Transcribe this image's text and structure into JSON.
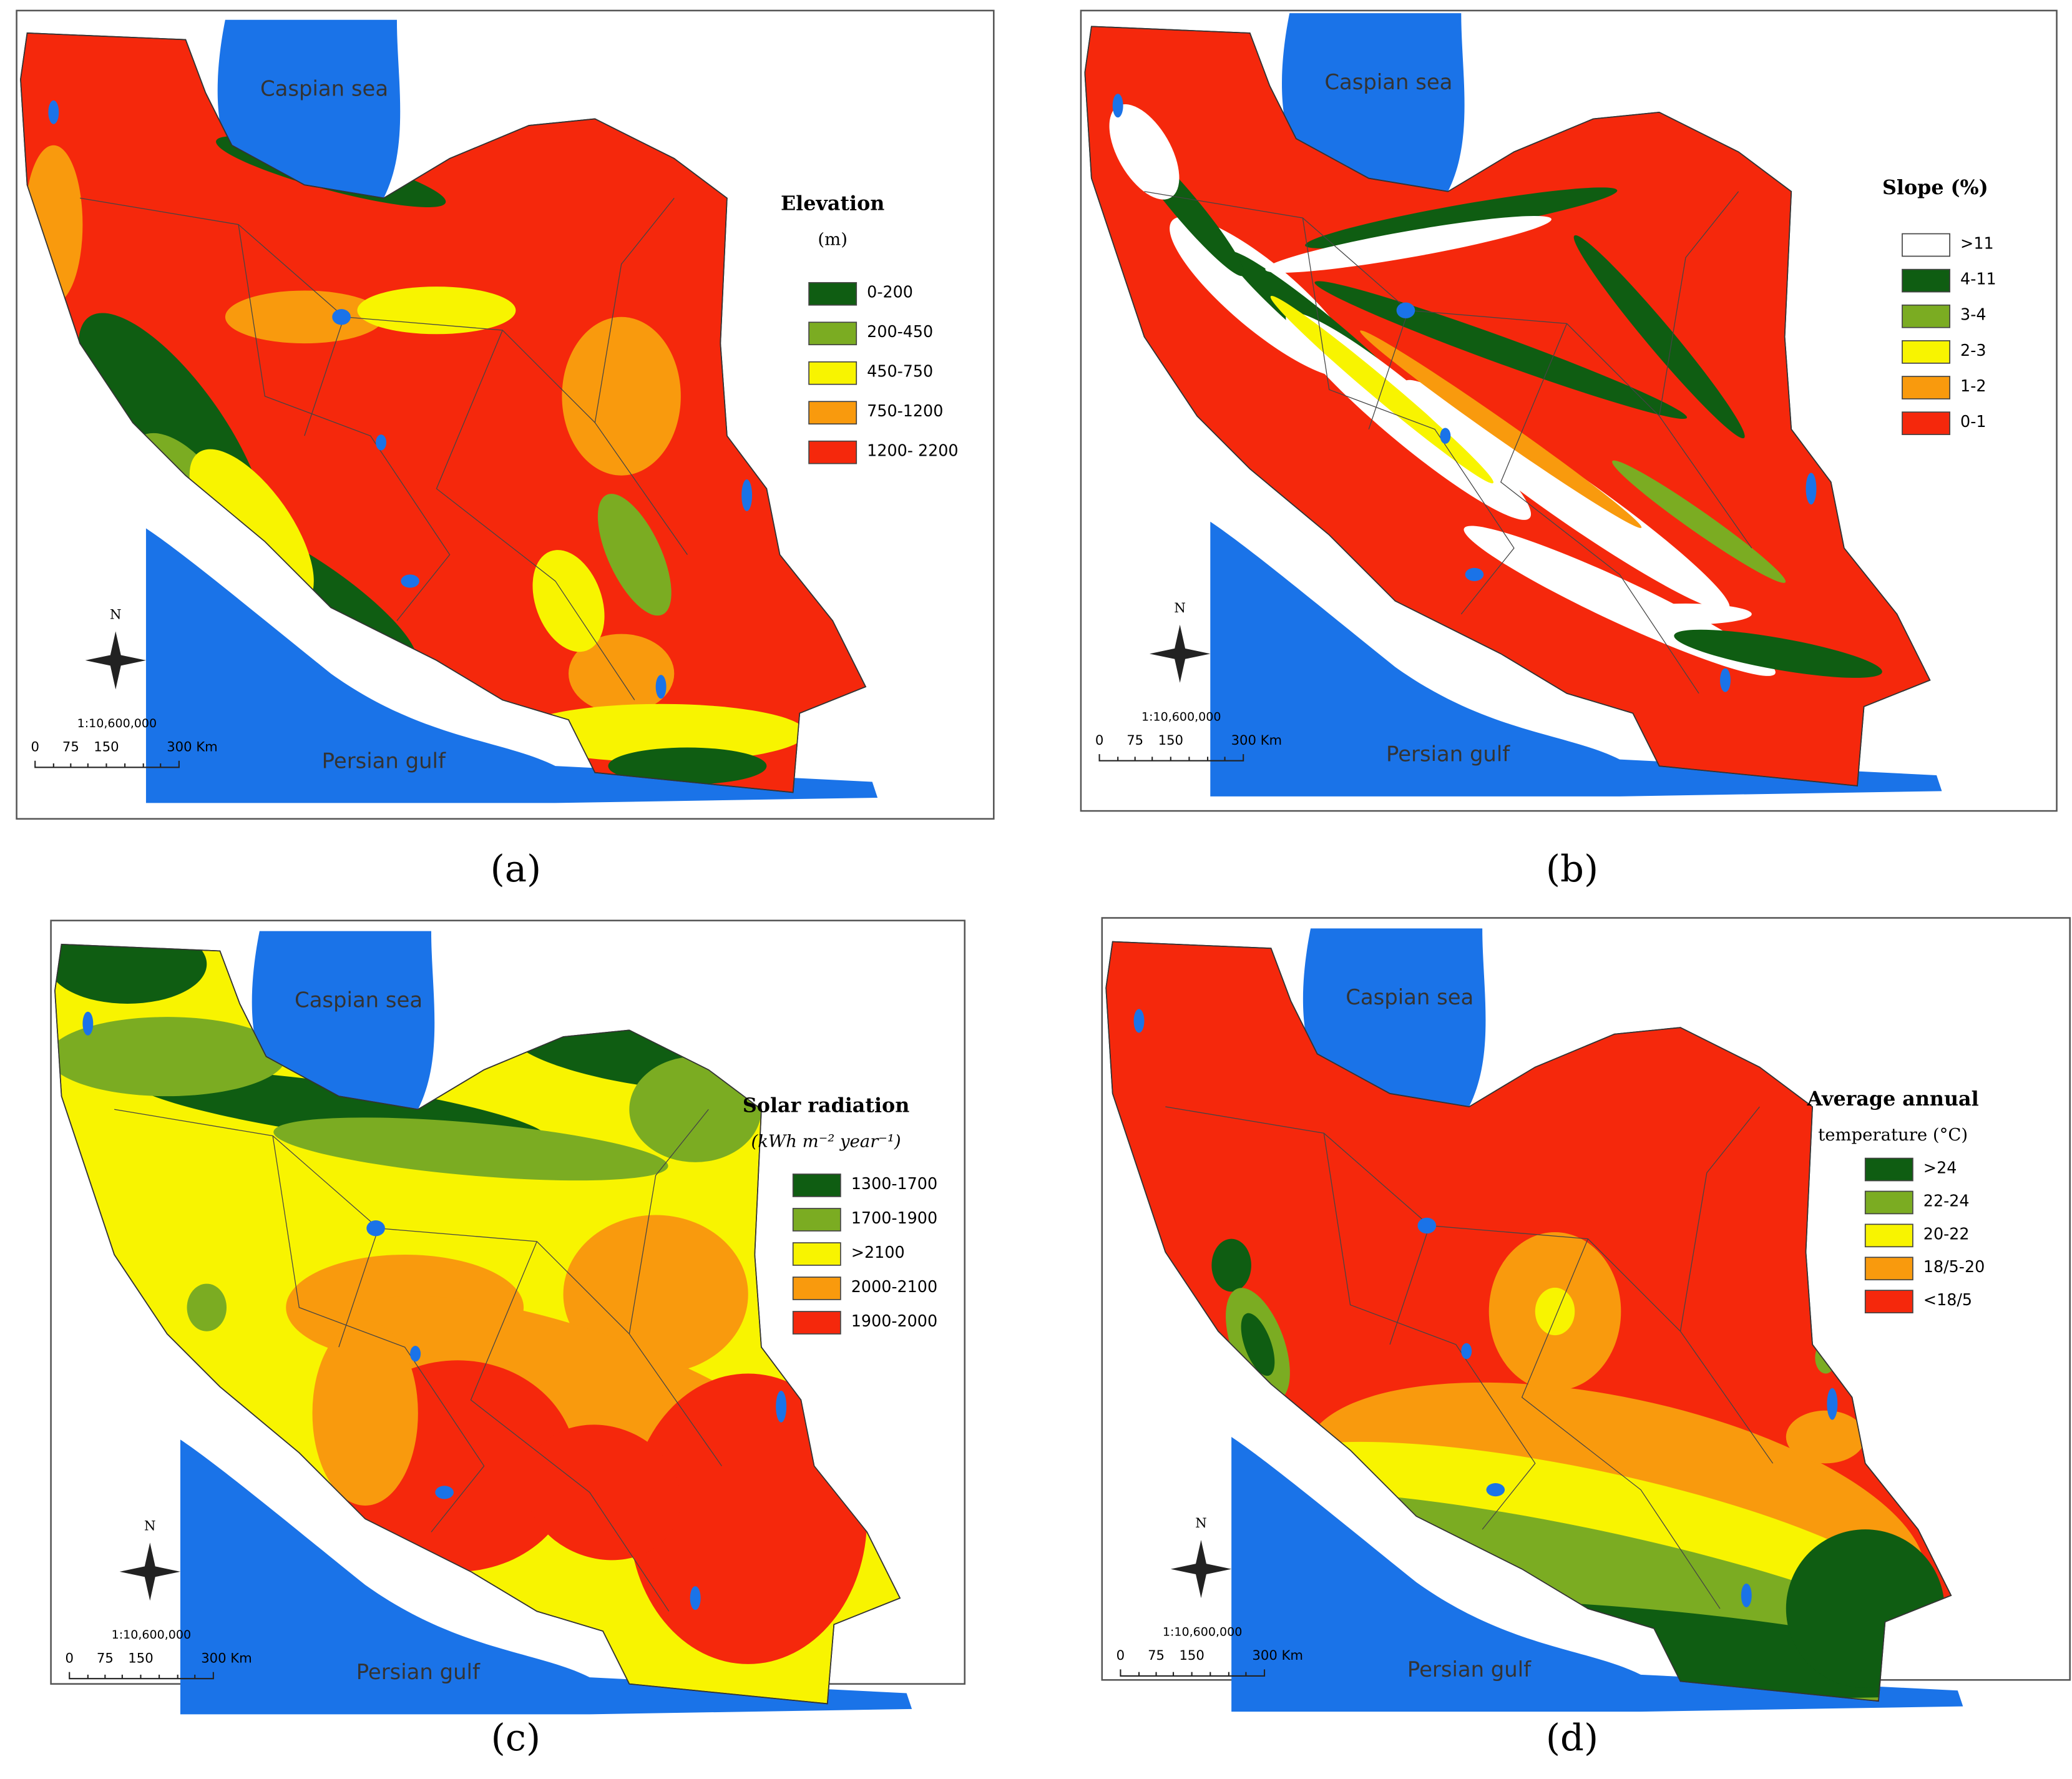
{
  "panels": [
    {
      "label": "(a)",
      "title": "Elevation",
      "subtitle": "(m)",
      "sea_north": "Caspian sea",
      "sea_south": "Persian gulf",
      "north": "N",
      "scale": "1:10,600,000",
      "scale_ticks": [
        "0",
        "75",
        "150",
        "300 Km"
      ],
      "legend": [
        {
          "label": "0-200",
          "color": "#0f5d12"
        },
        {
          "label": "200-450",
          "color": "#7bac22"
        },
        {
          "label": "450-750",
          "color": "#f8f400"
        },
        {
          "label": "750-1200",
          "color": "#f99a0d"
        },
        {
          "label": "1200- 2200",
          "color": "#f5280c"
        }
      ]
    },
    {
      "label": "(b)",
      "title": "Slope (%)",
      "sea_north": "Caspian sea",
      "sea_south": "Persian gulf",
      "north": "N",
      "scale": "1:10,600,000",
      "scale_ticks": [
        "0",
        "75",
        "150",
        "300 Km"
      ],
      "legend": [
        {
          "label": ">11",
          "color": "#ffffff"
        },
        {
          "label": "4-11",
          "color": "#0f5d12"
        },
        {
          "label": "3-4",
          "color": "#7bac22"
        },
        {
          "label": "2-3",
          "color": "#f8f400"
        },
        {
          "label": "1-2",
          "color": "#f99a0d"
        },
        {
          "label": "0-1",
          "color": "#f5280c"
        }
      ]
    },
    {
      "label": "(c)",
      "title": "Solar radiation",
      "subtitle": "(kWh m⁻² year⁻¹)",
      "sea_north": "Caspian sea",
      "sea_south": "Persian gulf",
      "north": "N",
      "scale": "1:10,600,000",
      "scale_ticks": [
        "0",
        "75",
        "150",
        "300 Km"
      ],
      "legend": [
        {
          "label": "1300-1700",
          "color": "#0f5d12"
        },
        {
          "label": "1700-1900",
          "color": "#7bac22"
        },
        {
          "label": ">2100",
          "color": "#f8f400"
        },
        {
          "label": "2000-2100",
          "color": "#f99a0d"
        },
        {
          "label": "1900-2000",
          "color": "#f5280c"
        }
      ]
    },
    {
      "label": "(d)",
      "title": "Average annual",
      "subtitle": "temperature (°C)",
      "sea_north": "Caspian sea",
      "sea_south": "Persian gulf",
      "north": "N",
      "scale": "1:10,600,000",
      "scale_ticks": [
        "0",
        "75",
        "150",
        "300 Km"
      ],
      "legend": [
        {
          "label": ">24",
          "color": "#0f5d12"
        },
        {
          "label": "22-24",
          "color": "#7bac22"
        },
        {
          "label": "20-22",
          "color": "#f8f400"
        },
        {
          "label": "18/5-20",
          "color": "#f99a0d"
        },
        {
          "label": "<18/5",
          "color": "#f5280c"
        }
      ]
    }
  ]
}
